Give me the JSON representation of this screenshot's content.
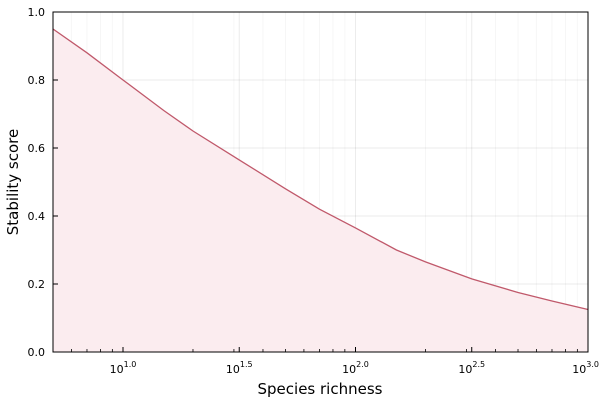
{
  "chart_data": {
    "type": "area",
    "xlabel": "Species richness",
    "ylabel": "Stability score",
    "xscale": "log10",
    "xlim": [
      5,
      1000
    ],
    "ylim": [
      0,
      1
    ],
    "grid": true,
    "legend": "none",
    "x_ticks": [
      {
        "value": 10,
        "label": "10",
        "exp": "1.0"
      },
      {
        "value": 31.62,
        "label": "10",
        "exp": "1.5"
      },
      {
        "value": 100,
        "label": "10",
        "exp": "2.0"
      },
      {
        "value": 316.2,
        "label": "10",
        "exp": "2.5"
      },
      {
        "value": 1000,
        "label": "10",
        "exp": "3.0"
      }
    ],
    "y_ticks": [
      {
        "value": 0.0,
        "label": "0.0"
      },
      {
        "value": 0.2,
        "label": "0.2"
      },
      {
        "value": 0.4,
        "label": "0.4"
      },
      {
        "value": 0.6,
        "label": "0.6"
      },
      {
        "value": 0.8,
        "label": "0.8"
      },
      {
        "value": 1.0,
        "label": "1.0"
      }
    ],
    "series": [
      {
        "color": "#c0596b",
        "fill_color": "#fbecef",
        "x": [
          5,
          7,
          10,
          15,
          20,
          31.62,
          50,
          70,
          100,
          150,
          200,
          316.2,
          500,
          700,
          1000
        ],
        "y": [
          0.95,
          0.88,
          0.8,
          0.71,
          0.65,
          0.565,
          0.48,
          0.42,
          0.365,
          0.3,
          0.265,
          0.215,
          0.175,
          0.15,
          0.125
        ]
      }
    ]
  }
}
